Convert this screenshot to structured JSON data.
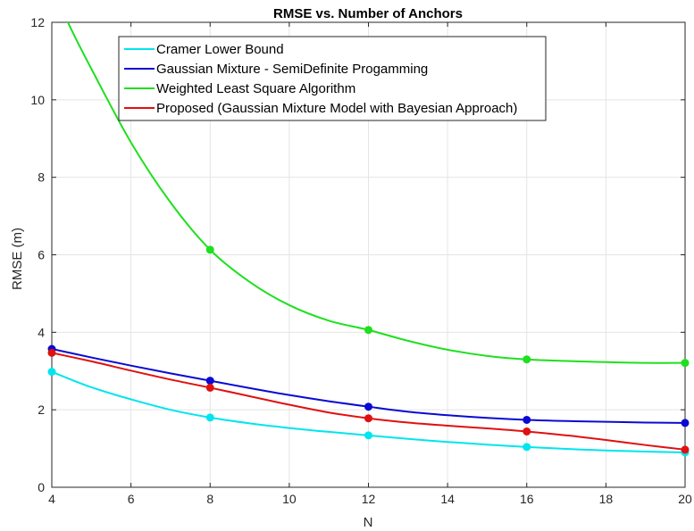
{
  "chart_data": {
    "type": "line",
    "title": "RMSE vs. Number of Anchors",
    "xlabel": "N",
    "ylabel": "RMSE (m)",
    "xlim": [
      4,
      20
    ],
    "ylim": [
      0,
      12
    ],
    "xticks": [
      4,
      6,
      8,
      10,
      12,
      14,
      16,
      18,
      20
    ],
    "yticks": [
      0,
      2,
      4,
      6,
      8,
      10,
      12
    ],
    "grid": true,
    "legend_position": "top-left",
    "marker_x": [
      4,
      8,
      12,
      16,
      20
    ],
    "series": [
      {
        "name": "Cramer Lower Bound",
        "color": "#00e5ee",
        "x": [
          4,
          5,
          6,
          7,
          8,
          9,
          10,
          11,
          12,
          13,
          14,
          15,
          16,
          17,
          18,
          19,
          20
        ],
        "y": [
          2.98,
          2.58,
          2.27,
          2.0,
          1.8,
          1.65,
          1.53,
          1.43,
          1.34,
          1.25,
          1.17,
          1.1,
          1.04,
          0.99,
          0.95,
          0.92,
          0.9
        ]
      },
      {
        "name": "Gaussian Mixture - SemiDefinite Progamming",
        "color": "#0a0ad2",
        "x": [
          4,
          5,
          6,
          7,
          8,
          9,
          10,
          11,
          12,
          13,
          14,
          15,
          16,
          17,
          18,
          19,
          20
        ],
        "y": [
          3.57,
          3.35,
          3.14,
          2.94,
          2.75,
          2.56,
          2.38,
          2.22,
          2.08,
          1.95,
          1.86,
          1.79,
          1.74,
          1.71,
          1.69,
          1.67,
          1.66
        ]
      },
      {
        "name": "Weighted Least Square Algorithm",
        "color": "#1ee01e",
        "x": [
          4,
          4.5,
          5,
          6,
          7,
          8,
          9,
          10,
          11,
          12,
          13,
          14,
          15,
          16,
          17,
          18,
          19,
          20
        ],
        "y": [
          12.9,
          11.8,
          10.8,
          8.9,
          7.35,
          6.13,
          5.3,
          4.7,
          4.3,
          4.06,
          3.78,
          3.55,
          3.39,
          3.3,
          3.26,
          3.23,
          3.21,
          3.21
        ]
      },
      {
        "name": "Proposed (Gaussian Mixture Model with Bayesian Approach)",
        "color": "#e01010",
        "x": [
          4,
          5,
          6,
          7,
          8,
          9,
          10,
          11,
          12,
          13,
          14,
          15,
          16,
          17,
          18,
          19,
          20
        ],
        "y": [
          3.47,
          3.25,
          3.01,
          2.78,
          2.57,
          2.35,
          2.13,
          1.93,
          1.78,
          1.67,
          1.59,
          1.52,
          1.44,
          1.34,
          1.22,
          1.09,
          0.97
        ]
      }
    ]
  }
}
